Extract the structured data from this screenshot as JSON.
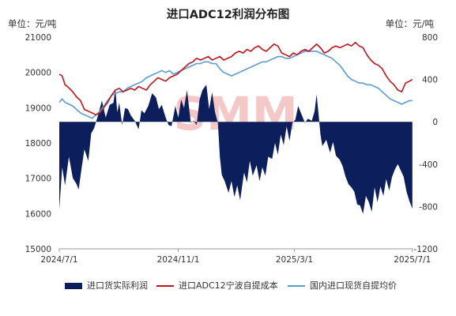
{
  "chart_data": {
    "type": "area+line",
    "title": "进口ADC12利润分布图",
    "left_unit": "单位：元/吨",
    "right_unit": "单位：元/吨",
    "watermark": "SMM",
    "left_axis": {
      "range": [
        15000,
        21000
      ],
      "ticks": [
        "15000",
        "16000",
        "17000",
        "18000",
        "19000",
        "20000",
        "21000"
      ]
    },
    "right_axis": {
      "range": [
        -1200,
        800
      ],
      "ticks": [
        "-1200",
        "-800",
        "-400",
        "0",
        "400",
        "800"
      ]
    },
    "x_ticks": [
      "2024/7/1",
      "2024/11/1",
      "2025/3/1",
      "2025/7/1"
    ],
    "x_tick_pos": [
      0,
      123,
      243,
      365
    ],
    "x_len": 366,
    "colors": {
      "profit": "#0c1f5c",
      "cost": "#c0141c",
      "price": "#5b9bd5",
      "watermark": "#f2b6b6"
    },
    "series": [
      {
        "name": "进口货实际利润",
        "axis": "right",
        "style": "area",
        "points": [
          [
            0,
            -830
          ],
          [
            3,
            -430
          ],
          [
            6,
            -600
          ],
          [
            10,
            -330
          ],
          [
            14,
            -530
          ],
          [
            18,
            -590
          ],
          [
            20,
            -640
          ],
          [
            23,
            -440
          ],
          [
            26,
            -260
          ],
          [
            30,
            -370
          ],
          [
            33,
            -110
          ],
          [
            36,
            -60
          ],
          [
            40,
            60
          ],
          [
            44,
            200
          ],
          [
            48,
            40
          ],
          [
            52,
            160
          ],
          [
            56,
            180
          ],
          [
            58,
            310
          ],
          [
            60,
            90
          ],
          [
            62,
            180
          ],
          [
            65,
            -30
          ],
          [
            68,
            130
          ],
          [
            71,
            120
          ],
          [
            74,
            60
          ],
          [
            78,
            10
          ],
          [
            82,
            -70
          ],
          [
            85,
            110
          ],
          [
            88,
            80
          ],
          [
            92,
            150
          ],
          [
            96,
            270
          ],
          [
            100,
            230
          ],
          [
            103,
            120
          ],
          [
            106,
            160
          ],
          [
            110,
            40
          ],
          [
            113,
            -30
          ],
          [
            116,
            -40
          ],
          [
            120,
            150
          ],
          [
            123,
            40
          ],
          [
            126,
            210
          ],
          [
            129,
            130
          ],
          [
            132,
            300
          ],
          [
            136,
            -10
          ],
          [
            139,
            10
          ],
          [
            142,
            -30
          ],
          [
            145,
            210
          ],
          [
            148,
            300
          ],
          [
            152,
            350
          ],
          [
            155,
            120
          ],
          [
            158,
            280
          ],
          [
            161,
            90
          ],
          [
            164,
            -10
          ],
          [
            166,
            -330
          ],
          [
            168,
            -500
          ],
          [
            171,
            -560
          ],
          [
            175,
            -670
          ],
          [
            178,
            -560
          ],
          [
            181,
            -710
          ],
          [
            184,
            -600
          ],
          [
            187,
            -740
          ],
          [
            191,
            -480
          ],
          [
            194,
            -570
          ],
          [
            197,
            -370
          ],
          [
            200,
            -510
          ],
          [
            204,
            -410
          ],
          [
            207,
            -560
          ],
          [
            210,
            -430
          ],
          [
            213,
            -510
          ],
          [
            216,
            -330
          ],
          [
            220,
            -350
          ],
          [
            223,
            -200
          ],
          [
            226,
            -310
          ],
          [
            229,
            -120
          ],
          [
            232,
            -220
          ],
          [
            235,
            -40
          ],
          [
            238,
            -180
          ],
          [
            241,
            -10
          ],
          [
            244,
            20
          ],
          [
            247,
            150
          ],
          [
            250,
            80
          ],
          [
            254,
            -10
          ],
          [
            257,
            30
          ],
          [
            261,
            10
          ],
          [
            264,
            100
          ],
          [
            266,
            260
          ],
          [
            268,
            80
          ],
          [
            270,
            -120
          ],
          [
            272,
            -230
          ],
          [
            276,
            -170
          ],
          [
            280,
            -290
          ],
          [
            283,
            -190
          ],
          [
            286,
            -320
          ],
          [
            290,
            -360
          ],
          [
            293,
            -420
          ],
          [
            296,
            -520
          ],
          [
            299,
            -590
          ],
          [
            302,
            -620
          ],
          [
            305,
            -660
          ],
          [
            308,
            -780
          ],
          [
            311,
            -790
          ],
          [
            314,
            -870
          ],
          [
            317,
            -700
          ],
          [
            320,
            -760
          ],
          [
            323,
            -850
          ],
          [
            326,
            -620
          ],
          [
            329,
            -760
          ],
          [
            332,
            -610
          ],
          [
            335,
            -700
          ],
          [
            338,
            -540
          ],
          [
            341,
            -650
          ],
          [
            344,
            -520
          ],
          [
            347,
            -450
          ],
          [
            350,
            -400
          ],
          [
            353,
            -460
          ],
          [
            356,
            -520
          ],
          [
            359,
            -660
          ],
          [
            362,
            -750
          ],
          [
            365,
            -820
          ]
        ]
      },
      {
        "name": "进口ADC12宁波自提成本",
        "axis": "left",
        "style": "line",
        "points": [
          [
            0,
            19950
          ],
          [
            3,
            19900
          ],
          [
            6,
            19650
          ],
          [
            10,
            19560
          ],
          [
            14,
            19450
          ],
          [
            18,
            19300
          ],
          [
            22,
            19200
          ],
          [
            26,
            18950
          ],
          [
            30,
            18900
          ],
          [
            34,
            18850
          ],
          [
            38,
            18800
          ],
          [
            42,
            18850
          ],
          [
            46,
            19000
          ],
          [
            50,
            19150
          ],
          [
            54,
            19350
          ],
          [
            58,
            19500
          ],
          [
            62,
            19550
          ],
          [
            66,
            19450
          ],
          [
            70,
            19500
          ],
          [
            74,
            19550
          ],
          [
            78,
            19500
          ],
          [
            82,
            19600
          ],
          [
            86,
            19550
          ],
          [
            90,
            19500
          ],
          [
            94,
            19650
          ],
          [
            98,
            19750
          ],
          [
            102,
            19850
          ],
          [
            106,
            19800
          ],
          [
            110,
            19750
          ],
          [
            114,
            19850
          ],
          [
            118,
            19900
          ],
          [
            122,
            19950
          ],
          [
            126,
            20050
          ],
          [
            130,
            20150
          ],
          [
            134,
            20250
          ],
          [
            138,
            20300
          ],
          [
            142,
            20400
          ],
          [
            146,
            20350
          ],
          [
            150,
            20400
          ],
          [
            154,
            20450
          ],
          [
            158,
            20350
          ],
          [
            162,
            20400
          ],
          [
            166,
            20450
          ],
          [
            170,
            20350
          ],
          [
            174,
            20400
          ],
          [
            178,
            20450
          ],
          [
            182,
            20550
          ],
          [
            186,
            20600
          ],
          [
            190,
            20550
          ],
          [
            194,
            20650
          ],
          [
            198,
            20600
          ],
          [
            202,
            20700
          ],
          [
            206,
            20750
          ],
          [
            210,
            20650
          ],
          [
            214,
            20600
          ],
          [
            218,
            20700
          ],
          [
            222,
            20800
          ],
          [
            226,
            20750
          ],
          [
            230,
            20550
          ],
          [
            234,
            20500
          ],
          [
            238,
            20450
          ],
          [
            242,
            20550
          ],
          [
            246,
            20500
          ],
          [
            250,
            20600
          ],
          [
            254,
            20650
          ],
          [
            258,
            20600
          ],
          [
            262,
            20700
          ],
          [
            266,
            20800
          ],
          [
            270,
            20700
          ],
          [
            274,
            20550
          ],
          [
            278,
            20600
          ],
          [
            282,
            20700
          ],
          [
            286,
            20750
          ],
          [
            290,
            20700
          ],
          [
            294,
            20750
          ],
          [
            298,
            20800
          ],
          [
            302,
            20750
          ],
          [
            306,
            20850
          ],
          [
            310,
            20750
          ],
          [
            314,
            20700
          ],
          [
            318,
            20500
          ],
          [
            322,
            20350
          ],
          [
            326,
            20250
          ],
          [
            330,
            20200
          ],
          [
            334,
            20100
          ],
          [
            338,
            19900
          ],
          [
            342,
            19750
          ],
          [
            346,
            19650
          ],
          [
            350,
            19500
          ],
          [
            354,
            19450
          ],
          [
            358,
            19700
          ],
          [
            362,
            19750
          ],
          [
            365,
            19800
          ]
        ]
      },
      {
        "name": "国内进口现货自提均价",
        "axis": "left",
        "style": "line",
        "points": [
          [
            0,
            19150
          ],
          [
            3,
            19250
          ],
          [
            6,
            19150
          ],
          [
            10,
            19100
          ],
          [
            14,
            19050
          ],
          [
            18,
            18950
          ],
          [
            22,
            18850
          ],
          [
            26,
            18800
          ],
          [
            30,
            18750
          ],
          [
            34,
            18700
          ],
          [
            38,
            18800
          ],
          [
            42,
            18900
          ],
          [
            46,
            19050
          ],
          [
            50,
            19200
          ],
          [
            54,
            19350
          ],
          [
            58,
            19400
          ],
          [
            62,
            19450
          ],
          [
            66,
            19450
          ],
          [
            70,
            19550
          ],
          [
            74,
            19600
          ],
          [
            78,
            19650
          ],
          [
            82,
            19700
          ],
          [
            86,
            19750
          ],
          [
            90,
            19850
          ],
          [
            94,
            19900
          ],
          [
            98,
            19950
          ],
          [
            102,
            20000
          ],
          [
            106,
            20050
          ],
          [
            110,
            20000
          ],
          [
            114,
            20050
          ],
          [
            118,
            19950
          ],
          [
            122,
            20000
          ],
          [
            126,
            20050
          ],
          [
            130,
            20100
          ],
          [
            134,
            20150
          ],
          [
            138,
            20200
          ],
          [
            142,
            20250
          ],
          [
            146,
            20250
          ],
          [
            150,
            20300
          ],
          [
            154,
            20300
          ],
          [
            158,
            20250
          ],
          [
            162,
            20250
          ],
          [
            166,
            20100
          ],
          [
            170,
            20000
          ],
          [
            174,
            19950
          ],
          [
            178,
            19900
          ],
          [
            182,
            19950
          ],
          [
            186,
            20000
          ],
          [
            190,
            20050
          ],
          [
            194,
            20100
          ],
          [
            198,
            20150
          ],
          [
            202,
            20200
          ],
          [
            206,
            20250
          ],
          [
            210,
            20300
          ],
          [
            214,
            20300
          ],
          [
            218,
            20350
          ],
          [
            222,
            20400
          ],
          [
            226,
            20450
          ],
          [
            230,
            20450
          ],
          [
            234,
            20400
          ],
          [
            238,
            20400
          ],
          [
            242,
            20450
          ],
          [
            246,
            20500
          ],
          [
            250,
            20550
          ],
          [
            254,
            20600
          ],
          [
            258,
            20600
          ],
          [
            262,
            20600
          ],
          [
            266,
            20600
          ],
          [
            270,
            20550
          ],
          [
            274,
            20500
          ],
          [
            278,
            20450
          ],
          [
            282,
            20400
          ],
          [
            286,
            20300
          ],
          [
            290,
            20200
          ],
          [
            294,
            20050
          ],
          [
            298,
            19900
          ],
          [
            302,
            19800
          ],
          [
            306,
            19750
          ],
          [
            310,
            19700
          ],
          [
            314,
            19700
          ],
          [
            318,
            19650
          ],
          [
            322,
            19650
          ],
          [
            326,
            19600
          ],
          [
            330,
            19550
          ],
          [
            334,
            19450
          ],
          [
            338,
            19350
          ],
          [
            342,
            19250
          ],
          [
            346,
            19200
          ],
          [
            350,
            19150
          ],
          [
            354,
            19100
          ],
          [
            358,
            19150
          ],
          [
            362,
            19200
          ],
          [
            365,
            19200
          ]
        ]
      }
    ]
  }
}
